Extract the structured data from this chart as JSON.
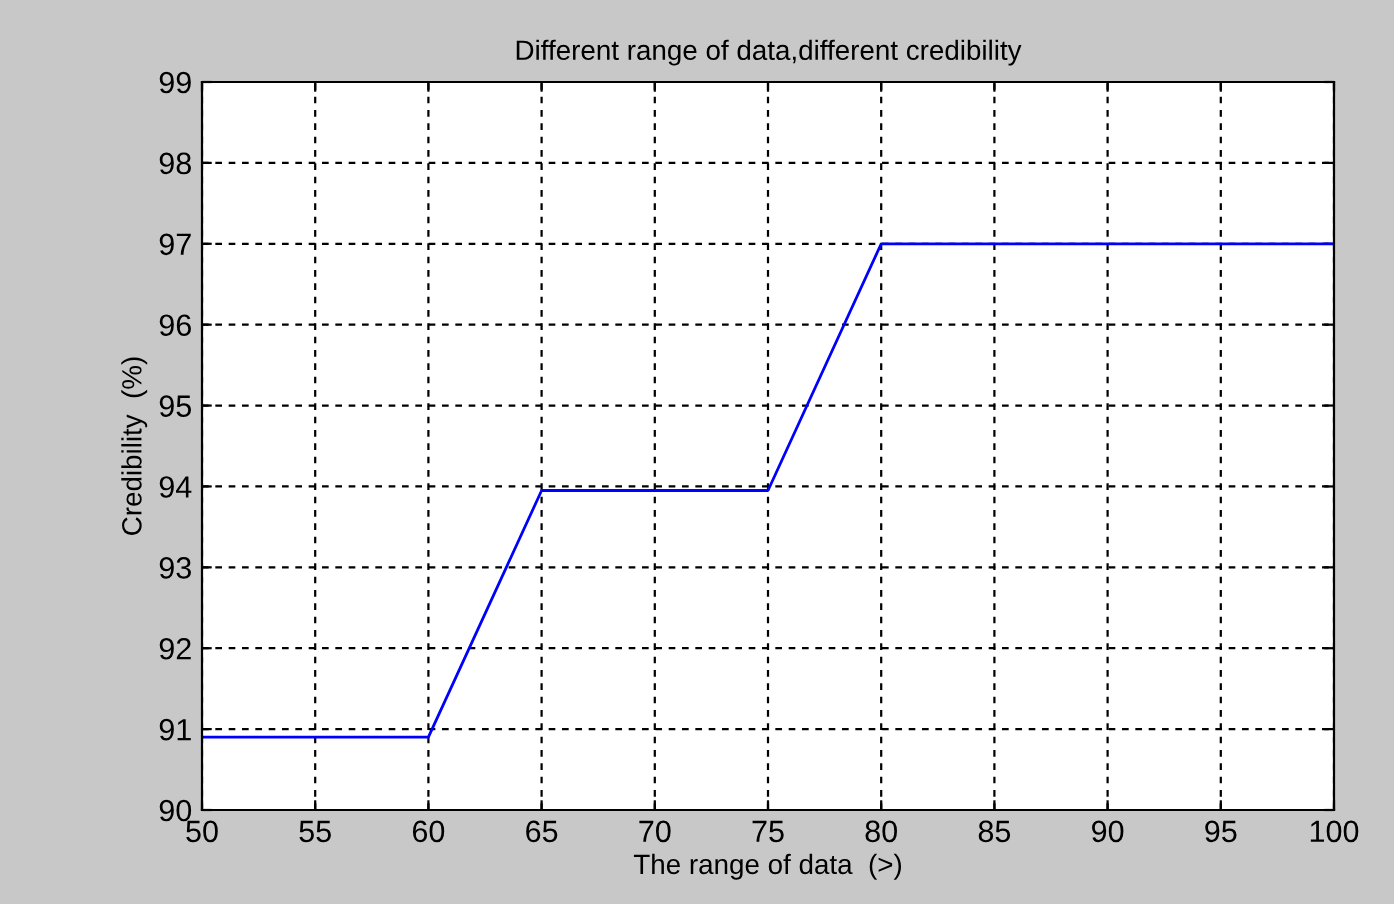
{
  "chart_data": {
    "type": "line",
    "title": "Different range of data,different credibility",
    "xlabel": "The range of data  (>)",
    "ylabel": "Credibility  (%)",
    "x": [
      50,
      60,
      65,
      75,
      80,
      100
    ],
    "series": [
      {
        "color": "#0000ff",
        "values": [
          90.9,
          90.9,
          93.95,
          93.95,
          97,
          97
        ]
      }
    ],
    "xlim": [
      50,
      100
    ],
    "xticks": [
      50,
      55,
      60,
      65,
      70,
      75,
      80,
      85,
      90,
      95,
      100
    ],
    "ylim": [
      90,
      99
    ],
    "yticks": [
      90,
      91,
      92,
      93,
      94,
      95,
      96,
      97,
      98,
      99
    ],
    "grid": true,
    "marker": "none",
    "line_style": "solid"
  }
}
